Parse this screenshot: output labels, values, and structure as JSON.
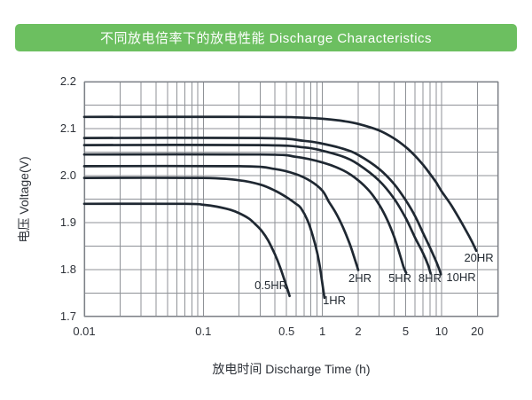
{
  "header": {
    "title": "不同放电倍率下的放电性能 Discharge Characteristics"
  },
  "colors": {
    "header_green": "#6cbf60",
    "curve": "#1f2832",
    "grid": "#8f9297",
    "plot_border": "#7d8187",
    "text": "#2d3138"
  },
  "chart_data": {
    "type": "line",
    "title": "不同放电倍率下的放电性能 Discharge Characteristics",
    "xlabel": "放电时间  Discharge Time (h)",
    "ylabel": "电压  Voltage(V)",
    "x_scale": "log",
    "xlim": [
      0.01,
      30
    ],
    "ylim": [
      1.7,
      2.2
    ],
    "grid": true,
    "y_minor_step": 0.05,
    "x_ticks": [
      {
        "value": 0.01,
        "label": "0.01"
      },
      {
        "value": 0.1,
        "label": "0.1"
      },
      {
        "value": 0.5,
        "label": "0.5"
      },
      {
        "value": 1,
        "label": "1"
      },
      {
        "value": 2,
        "label": "2"
      },
      {
        "value": 5,
        "label": "5"
      },
      {
        "value": 10,
        "label": "10"
      },
      {
        "value": 20,
        "label": "20"
      }
    ],
    "y_ticks": [
      {
        "value": 2.2,
        "label": "2.2"
      },
      {
        "value": 2.1,
        "label": "2.1"
      },
      {
        "value": 2.0,
        "label": "2.0"
      },
      {
        "value": 1.9,
        "label": "1.9"
      },
      {
        "value": 1.8,
        "label": "1.8"
      },
      {
        "value": 1.7,
        "label": "1.7"
      }
    ],
    "series": [
      {
        "name": "0.5HR",
        "label_at": [
          0.37,
          1.766
        ],
        "points": [
          [
            0.01,
            1.94
          ],
          [
            0.07,
            1.94
          ],
          [
            0.1,
            1.938
          ],
          [
            0.13,
            1.934
          ],
          [
            0.17,
            1.927
          ],
          [
            0.2,
            1.92
          ],
          [
            0.24,
            1.909
          ],
          [
            0.27,
            1.898
          ],
          [
            0.31,
            1.882
          ],
          [
            0.35,
            1.862
          ],
          [
            0.4,
            1.832
          ],
          [
            0.44,
            1.806
          ],
          [
            0.48,
            1.778
          ],
          [
            0.51,
            1.758
          ],
          [
            0.53,
            1.744
          ]
        ]
      },
      {
        "name": "1HR",
        "label_at": [
          1.26,
          1.734
        ],
        "points": [
          [
            0.01,
            1.995
          ],
          [
            0.1,
            1.995
          ],
          [
            0.2,
            1.99
          ],
          [
            0.3,
            1.981
          ],
          [
            0.4,
            1.968
          ],
          [
            0.5,
            1.954
          ],
          [
            0.6,
            1.94
          ],
          [
            0.66,
            1.931
          ],
          [
            0.75,
            1.905
          ],
          [
            0.83,
            1.872
          ],
          [
            0.9,
            1.838
          ],
          [
            0.95,
            1.808
          ],
          [
            1.0,
            1.77
          ],
          [
            1.04,
            1.74
          ]
        ]
      },
      {
        "name": "2HR",
        "label_at": [
          2.07,
          1.781
        ],
        "points": [
          [
            0.01,
            2.02
          ],
          [
            0.2,
            2.02
          ],
          [
            0.4,
            2.014
          ],
          [
            0.6,
            2.003
          ],
          [
            0.8,
            1.988
          ],
          [
            1.0,
            1.968
          ],
          [
            1.13,
            1.945
          ],
          [
            1.3,
            1.92
          ],
          [
            1.5,
            1.888
          ],
          [
            1.7,
            1.854
          ],
          [
            1.85,
            1.826
          ],
          [
            1.95,
            1.808
          ],
          [
            2.0,
            1.799
          ]
        ]
      },
      {
        "name": "5HR",
        "label_at": [
          4.48,
          1.781
        ],
        "points": [
          [
            0.01,
            2.045
          ],
          [
            0.3,
            2.045
          ],
          [
            0.6,
            2.04
          ],
          [
            1.0,
            2.028
          ],
          [
            1.5,
            2.011
          ],
          [
            2.0,
            1.99
          ],
          [
            2.5,
            1.966
          ],
          [
            3.0,
            1.938
          ],
          [
            3.5,
            1.906
          ],
          [
            4.0,
            1.87
          ],
          [
            4.5,
            1.83
          ],
          [
            4.8,
            1.806
          ],
          [
            5.05,
            1.793
          ]
        ]
      },
      {
        "name": "8HR",
        "label_at": [
          8.0,
          1.781
        ],
        "points": [
          [
            0.01,
            2.065
          ],
          [
            0.3,
            2.065
          ],
          [
            0.7,
            2.06
          ],
          [
            1.0,
            2.053
          ],
          [
            1.5,
            2.04
          ],
          [
            2.0,
            2.024
          ],
          [
            3.0,
            1.989
          ],
          [
            4.0,
            1.951
          ],
          [
            5.0,
            1.91
          ],
          [
            6.0,
            1.868
          ],
          [
            7.0,
            1.835
          ],
          [
            7.7,
            1.81
          ],
          [
            8.1,
            1.792
          ]
        ]
      },
      {
        "name": "10HR",
        "label_at": [
          14.6,
          1.783
        ],
        "points": [
          [
            0.01,
            2.08
          ],
          [
            0.3,
            2.08
          ],
          [
            0.7,
            2.074
          ],
          [
            1.0,
            2.068
          ],
          [
            1.5,
            2.057
          ],
          [
            2.0,
            2.044
          ],
          [
            3.0,
            2.014
          ],
          [
            4.0,
            1.982
          ],
          [
            5.0,
            1.948
          ],
          [
            6.0,
            1.914
          ],
          [
            7.0,
            1.878
          ],
          [
            8.0,
            1.847
          ],
          [
            9.0,
            1.818
          ],
          [
            9.6,
            1.8
          ],
          [
            9.9,
            1.79
          ]
        ]
      },
      {
        "name": "20HR",
        "label_at": [
          20.6,
          1.824
        ],
        "points": [
          [
            0.01,
            2.125
          ],
          [
            0.3,
            2.125
          ],
          [
            0.6,
            2.124
          ],
          [
            1.0,
            2.121
          ],
          [
            1.5,
            2.116
          ],
          [
            2.0,
            2.11
          ],
          [
            3.0,
            2.096
          ],
          [
            4.0,
            2.079
          ],
          [
            5.0,
            2.061
          ],
          [
            6.0,
            2.042
          ],
          [
            7.0,
            2.023
          ],
          [
            8.0,
            2.004
          ],
          [
            9.0,
            1.986
          ],
          [
            10.0,
            1.967
          ],
          [
            12.0,
            1.938
          ],
          [
            14.0,
            1.91
          ],
          [
            16.0,
            1.884
          ],
          [
            18.0,
            1.86
          ],
          [
            19.6,
            1.84
          ]
        ]
      }
    ]
  }
}
